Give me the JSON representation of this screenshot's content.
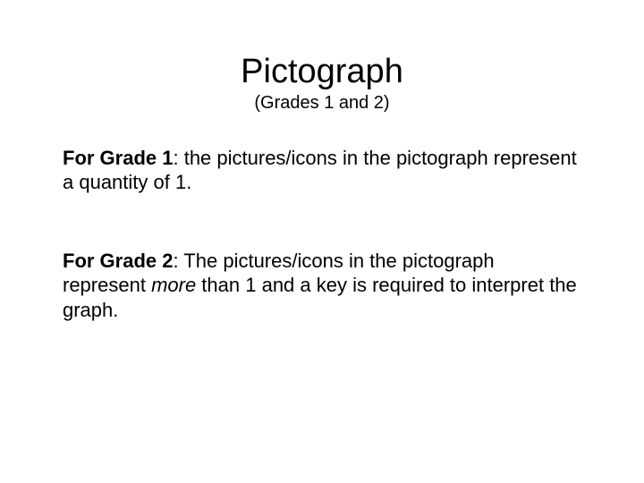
{
  "title": "Pictograph",
  "subtitle": "(Grades 1 and 2)",
  "grade1": {
    "label": "For Grade 1",
    "text": ":  the pictures/icons in the pictograph represent a quantity of 1."
  },
  "grade2": {
    "label": "For Grade 2",
    "pre": ":  The pictures/icons in the pictograph represent ",
    "emph": "more",
    "post": " than 1 and a key is required to interpret the graph."
  },
  "colors": {
    "background": "#ffffff",
    "text": "#000000"
  },
  "fonts": {
    "title_size_pt": 38,
    "subtitle_size_pt": 20,
    "body_size_pt": 22,
    "family": "Arial"
  }
}
